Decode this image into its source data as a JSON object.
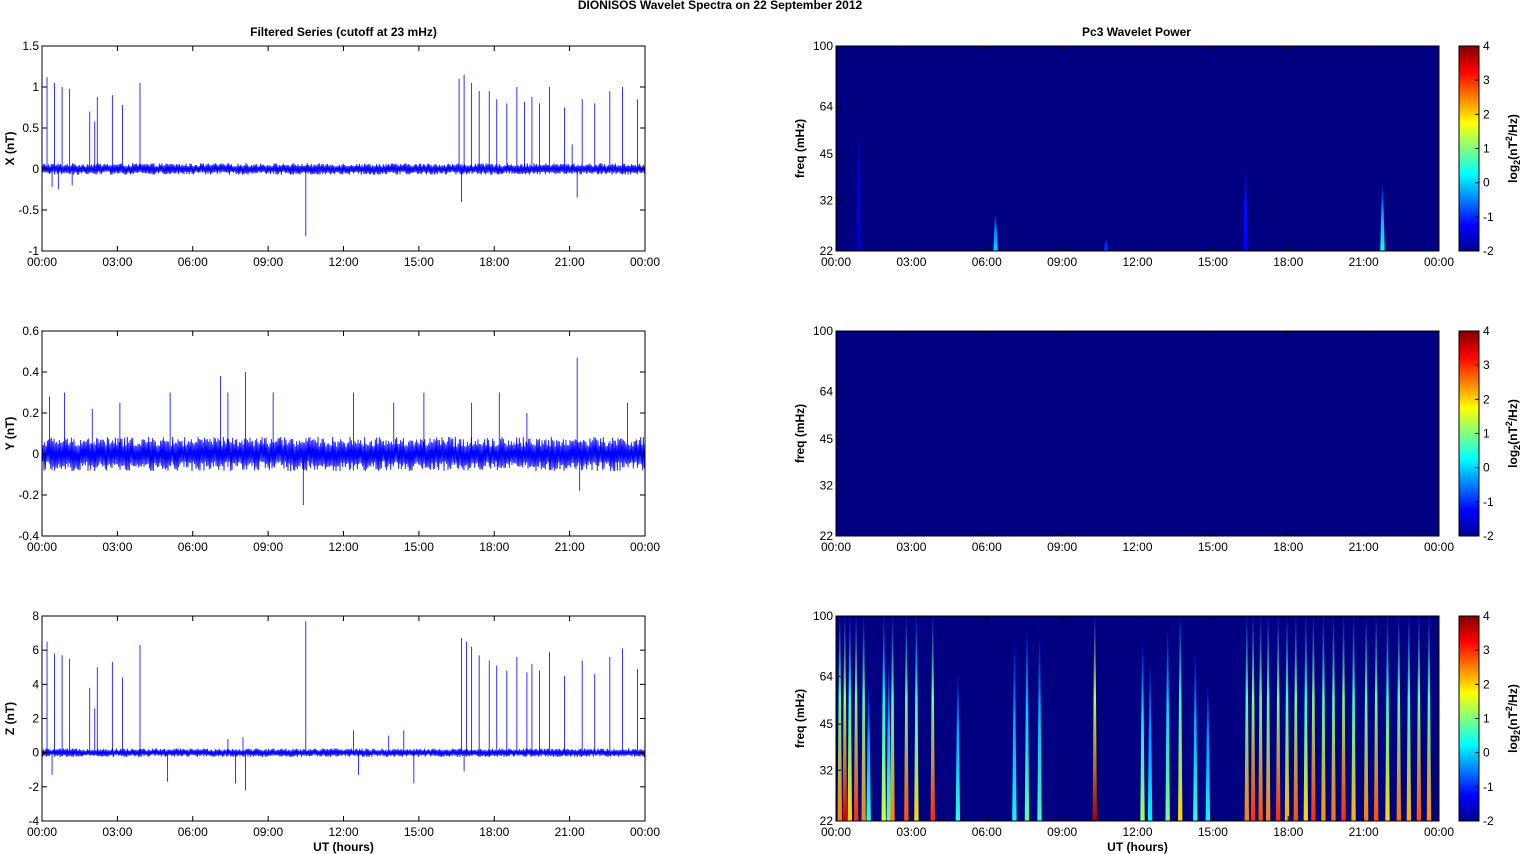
{
  "figure": {
    "suptitle": "DIONISOS Wavelet Spectra on 22 September 2012",
    "left_title": "Filtered Series (cutoff at 23 mHz)",
    "right_title": "Pc3 Wavelet Power"
  },
  "chart_data": [
    {
      "type": "line",
      "panel": "X",
      "ylabel": "X (nT)",
      "xlabel": "",
      "xlim": [
        0,
        24
      ],
      "ylim": [
        -1,
        1.5
      ],
      "yticks": [
        -1,
        -0.5,
        0,
        0.5,
        1,
        1.5
      ],
      "ytick_labels": [
        "-1",
        "-0.5",
        "0",
        "0.5",
        "1",
        "1.5"
      ],
      "xtick_labels": [
        "00:00",
        "03:00",
        "06:00",
        "09:00",
        "12:00",
        "15:00",
        "18:00",
        "21:00",
        "00:00"
      ],
      "series_color": "#0000ff",
      "noise_amplitude": 0.05,
      "spikes": [
        {
          "t": 0.2,
          "v": 1.12
        },
        {
          "t": 0.4,
          "v": -0.22
        },
        {
          "t": 0.5,
          "v": 1.05
        },
        {
          "t": 0.65,
          "v": -0.25
        },
        {
          "t": 0.8,
          "v": 1.0
        },
        {
          "t": 1.1,
          "v": 0.98
        },
        {
          "t": 1.2,
          "v": -0.2
        },
        {
          "t": 1.9,
          "v": 0.7
        },
        {
          "t": 2.1,
          "v": 0.58
        },
        {
          "t": 2.2,
          "v": 0.88
        },
        {
          "t": 2.8,
          "v": 0.9
        },
        {
          "t": 3.2,
          "v": 0.78
        },
        {
          "t": 3.9,
          "v": 1.05
        },
        {
          "t": 10.5,
          "v": -0.82
        },
        {
          "t": 16.6,
          "v": 1.1
        },
        {
          "t": 16.7,
          "v": -0.4
        },
        {
          "t": 16.8,
          "v": 1.15
        },
        {
          "t": 17.1,
          "v": 1.05
        },
        {
          "t": 17.4,
          "v": 0.95
        },
        {
          "t": 17.8,
          "v": 0.95
        },
        {
          "t": 18.1,
          "v": 0.85
        },
        {
          "t": 18.5,
          "v": 0.8
        },
        {
          "t": 18.9,
          "v": 1.0
        },
        {
          "t": 19.2,
          "v": 0.82
        },
        {
          "t": 19.5,
          "v": 0.88
        },
        {
          "t": 19.8,
          "v": 0.8
        },
        {
          "t": 20.2,
          "v": 1.0
        },
        {
          "t": 20.8,
          "v": 0.75
        },
        {
          "t": 21.1,
          "v": 0.3
        },
        {
          "t": 21.3,
          "v": -0.35
        },
        {
          "t": 21.5,
          "v": 0.85
        },
        {
          "t": 22.0,
          "v": 0.8
        },
        {
          "t": 22.6,
          "v": 0.95
        },
        {
          "t": 23.1,
          "v": 1.0
        },
        {
          "t": 23.7,
          "v": 0.85
        }
      ]
    },
    {
      "type": "line",
      "panel": "Y",
      "ylabel": "Y (nT)",
      "xlabel": "",
      "xlim": [
        0,
        24
      ],
      "ylim": [
        -0.4,
        0.6
      ],
      "yticks": [
        -0.4,
        -0.2,
        0,
        0.2,
        0.4,
        0.6
      ],
      "ytick_labels": [
        "-0.4",
        "-0.2",
        "0",
        "0.2",
        "0.4",
        "0.6"
      ],
      "xtick_labels": [
        "00:00",
        "03:00",
        "06:00",
        "09:00",
        "12:00",
        "15:00",
        "18:00",
        "21:00",
        "00:00"
      ],
      "series_color": "#0000ff",
      "noise_amplitude": 0.06,
      "spikes": [
        {
          "t": 0.3,
          "v": 0.28
        },
        {
          "t": 0.9,
          "v": 0.3
        },
        {
          "t": 2.0,
          "v": 0.22
        },
        {
          "t": 3.1,
          "v": 0.25
        },
        {
          "t": 5.1,
          "v": 0.3
        },
        {
          "t": 7.1,
          "v": 0.38
        },
        {
          "t": 7.4,
          "v": 0.3
        },
        {
          "t": 8.1,
          "v": 0.4
        },
        {
          "t": 9.2,
          "v": 0.3
        },
        {
          "t": 10.4,
          "v": -0.25
        },
        {
          "t": 12.4,
          "v": 0.3
        },
        {
          "t": 14.0,
          "v": 0.25
        },
        {
          "t": 15.2,
          "v": 0.3
        },
        {
          "t": 17.1,
          "v": 0.25
        },
        {
          "t": 18.2,
          "v": 0.3
        },
        {
          "t": 19.3,
          "v": 0.2
        },
        {
          "t": 21.3,
          "v": 0.47
        },
        {
          "t": 21.4,
          "v": -0.18
        },
        {
          "t": 23.3,
          "v": 0.25
        }
      ]
    },
    {
      "type": "line",
      "panel": "Z",
      "ylabel": "Z (nT)",
      "xlabel": "UT (hours)",
      "xlim": [
        0,
        24
      ],
      "ylim": [
        -4,
        8
      ],
      "yticks": [
        -4,
        -2,
        0,
        2,
        4,
        6,
        8
      ],
      "ytick_labels": [
        "-4",
        "-2",
        "0",
        "2",
        "4",
        "6",
        "8"
      ],
      "xtick_labels": [
        "00:00",
        "03:00",
        "06:00",
        "09:00",
        "12:00",
        "15:00",
        "18:00",
        "21:00",
        "00:00"
      ],
      "series_color": "#0000ff",
      "noise_amplitude": 0.18,
      "spikes": [
        {
          "t": 0.2,
          "v": 6.5
        },
        {
          "t": 0.4,
          "v": -1.3
        },
        {
          "t": 0.5,
          "v": 5.8
        },
        {
          "t": 0.8,
          "v": 5.7
        },
        {
          "t": 1.1,
          "v": 5.5
        },
        {
          "t": 1.9,
          "v": 3.8
        },
        {
          "t": 2.1,
          "v": 2.6
        },
        {
          "t": 2.2,
          "v": 5.0
        },
        {
          "t": 2.8,
          "v": 5.3
        },
        {
          "t": 3.2,
          "v": 4.4
        },
        {
          "t": 3.9,
          "v": 6.3
        },
        {
          "t": 5.0,
          "v": -1.7
        },
        {
          "t": 7.4,
          "v": 0.8
        },
        {
          "t": 7.7,
          "v": -1.8
        },
        {
          "t": 8.0,
          "v": 0.9
        },
        {
          "t": 8.1,
          "v": -2.2
        },
        {
          "t": 10.5,
          "v": 7.7
        },
        {
          "t": 12.4,
          "v": 1.3
        },
        {
          "t": 12.6,
          "v": -1.3
        },
        {
          "t": 13.8,
          "v": 1.0
        },
        {
          "t": 14.4,
          "v": 1.3
        },
        {
          "t": 14.8,
          "v": -1.8
        },
        {
          "t": 16.7,
          "v": 6.7
        },
        {
          "t": 16.8,
          "v": -1.1
        },
        {
          "t": 16.9,
          "v": 6.5
        },
        {
          "t": 17.1,
          "v": 6.2
        },
        {
          "t": 17.4,
          "v": 5.7
        },
        {
          "t": 17.8,
          "v": 5.4
        },
        {
          "t": 18.1,
          "v": 5.1
        },
        {
          "t": 18.5,
          "v": 4.8
        },
        {
          "t": 18.9,
          "v": 5.6
        },
        {
          "t": 19.3,
          "v": 4.7
        },
        {
          "t": 19.5,
          "v": 5.2
        },
        {
          "t": 19.8,
          "v": 4.8
        },
        {
          "t": 20.2,
          "v": 5.9
        },
        {
          "t": 20.8,
          "v": 4.5
        },
        {
          "t": 21.5,
          "v": 5.4
        },
        {
          "t": 22.0,
          "v": 4.6
        },
        {
          "t": 22.6,
          "v": 5.6
        },
        {
          "t": 23.1,
          "v": 6.1
        },
        {
          "t": 23.7,
          "v": 4.9
        }
      ]
    },
    {
      "type": "heatmap",
      "panel": "X-power",
      "ylabel": "freq (mHz)",
      "xlabel": "",
      "xlim": [
        0,
        24
      ],
      "ylim": [
        22,
        100
      ],
      "yscale": "log",
      "yticks": [
        22,
        32,
        45,
        64,
        100
      ],
      "ytick_labels": [
        "22",
        "32",
        "45",
        "64",
        "100"
      ],
      "xtick_labels": [
        "00:00",
        "03:00",
        "06:00",
        "09:00",
        "12:00",
        "15:00",
        "18:00",
        "21:00",
        "00:00"
      ],
      "background_value": -2,
      "colorbar": {
        "min": -2,
        "max": 4,
        "ticks": [
          -2,
          -1,
          0,
          1,
          2,
          3,
          4
        ],
        "tick_labels": [
          "-2",
          "-1",
          "0",
          "1",
          "2",
          "3",
          "4"
        ],
        "label": "log2(nT²/Hz)"
      },
      "events": [
        {
          "t": 0.9,
          "top_freq": 50,
          "peak": -1.6
        },
        {
          "t": 6.35,
          "top_freq": 29,
          "peak": 0.0
        },
        {
          "t": 10.75,
          "top_freq": 24,
          "peak": -1.0
        },
        {
          "t": 16.3,
          "top_freq": 40,
          "peak": -1.3
        },
        {
          "t": 21.75,
          "top_freq": 36,
          "peak": 0.3
        }
      ]
    },
    {
      "type": "heatmap",
      "panel": "Y-power",
      "ylabel": "freq (mHz)",
      "xlabel": "",
      "xlim": [
        0,
        24
      ],
      "ylim": [
        22,
        100
      ],
      "yscale": "log",
      "yticks": [
        22,
        32,
        45,
        64,
        100
      ],
      "ytick_labels": [
        "22",
        "32",
        "45",
        "64",
        "100"
      ],
      "xtick_labels": [
        "00:00",
        "03:00",
        "06:00",
        "09:00",
        "12:00",
        "15:00",
        "18:00",
        "21:00",
        "00:00"
      ],
      "background_value": -2,
      "colorbar": {
        "min": -2,
        "max": 4,
        "ticks": [
          -2,
          -1,
          0,
          1,
          2,
          3,
          4
        ],
        "tick_labels": [
          "-2",
          "-1",
          "0",
          "1",
          "2",
          "3",
          "4"
        ],
        "label": "log2(nT²/Hz)"
      },
      "events": []
    },
    {
      "type": "heatmap",
      "panel": "Z-power",
      "ylabel": "freq (mHz)",
      "xlabel": "UT (hours)",
      "xlim": [
        0,
        24
      ],
      "ylim": [
        22,
        100
      ],
      "yscale": "log",
      "yticks": [
        22,
        32,
        45,
        64,
        100
      ],
      "ytick_labels": [
        "22",
        "32",
        "45",
        "64",
        "100"
      ],
      "xtick_labels": [
        "00:00",
        "03:00",
        "06:00",
        "09:00",
        "12:00",
        "15:00",
        "18:00",
        "21:00",
        "00:00"
      ],
      "background_value": -2,
      "colorbar": {
        "min": -2,
        "max": 4,
        "ticks": [
          -2,
          -1,
          0,
          1,
          2,
          3,
          4
        ],
        "tick_labels": [
          "-2",
          "-1",
          "0",
          "1",
          "2",
          "3",
          "4"
        ],
        "label": "log2(nT²/Hz)"
      },
      "events": [
        {
          "t": 0.15,
          "top_freq": 100,
          "peak": 2.5
        },
        {
          "t": 0.35,
          "top_freq": 100,
          "peak": 3.5
        },
        {
          "t": 0.55,
          "top_freq": 100,
          "peak": 2.0
        },
        {
          "t": 0.8,
          "top_freq": 100,
          "peak": 3.0
        },
        {
          "t": 1.1,
          "top_freq": 100,
          "peak": 2.5
        },
        {
          "t": 1.3,
          "top_freq": 60,
          "peak": 0.5
        },
        {
          "t": 1.9,
          "top_freq": 100,
          "peak": 1.5
        },
        {
          "t": 2.1,
          "top_freq": 70,
          "peak": 0.8
        },
        {
          "t": 2.25,
          "top_freq": 100,
          "peak": 2.5
        },
        {
          "t": 2.8,
          "top_freq": 100,
          "peak": 2.8
        },
        {
          "t": 3.2,
          "top_freq": 100,
          "peak": 2.0
        },
        {
          "t": 3.85,
          "top_freq": 100,
          "peak": 3.0
        },
        {
          "t": 4.85,
          "top_freq": 65,
          "peak": 0.5
        },
        {
          "t": 7.1,
          "top_freq": 80,
          "peak": 0.3
        },
        {
          "t": 7.6,
          "top_freq": 90,
          "peak": 0.8
        },
        {
          "t": 8.1,
          "top_freq": 85,
          "peak": 0.6
        },
        {
          "t": 10.3,
          "top_freq": 100,
          "peak": 3.8
        },
        {
          "t": 12.2,
          "top_freq": 80,
          "peak": 1.2
        },
        {
          "t": 12.5,
          "top_freq": 70,
          "peak": 0.2
        },
        {
          "t": 13.2,
          "top_freq": 90,
          "peak": 1.0
        },
        {
          "t": 13.7,
          "top_freq": 100,
          "peak": 2.0
        },
        {
          "t": 14.3,
          "top_freq": 75,
          "peak": 0.5
        },
        {
          "t": 14.8,
          "top_freq": 60,
          "peak": 0.3
        },
        {
          "t": 16.35,
          "top_freq": 100,
          "peak": 2.5
        },
        {
          "t": 16.6,
          "top_freq": 100,
          "peak": 3.0
        },
        {
          "t": 16.9,
          "top_freq": 100,
          "peak": 2.8
        },
        {
          "t": 17.2,
          "top_freq": 100,
          "peak": 2.5
        },
        {
          "t": 17.6,
          "top_freq": 100,
          "peak": 3.0
        },
        {
          "t": 17.95,
          "top_freq": 100,
          "peak": 2.2
        },
        {
          "t": 18.3,
          "top_freq": 100,
          "peak": 2.8
        },
        {
          "t": 18.7,
          "top_freq": 100,
          "peak": 2.0
        },
        {
          "t": 19.0,
          "top_freq": 100,
          "peak": 3.0
        },
        {
          "t": 19.4,
          "top_freq": 100,
          "peak": 2.4
        },
        {
          "t": 19.8,
          "top_freq": 100,
          "peak": 2.6
        },
        {
          "t": 20.2,
          "top_freq": 100,
          "peak": 3.0
        },
        {
          "t": 20.6,
          "top_freq": 100,
          "peak": 2.2
        },
        {
          "t": 21.1,
          "top_freq": 100,
          "peak": 2.5
        },
        {
          "t": 21.5,
          "top_freq": 100,
          "peak": 2.8
        },
        {
          "t": 21.95,
          "top_freq": 100,
          "peak": 2.0
        },
        {
          "t": 22.4,
          "top_freq": 100,
          "peak": 2.6
        },
        {
          "t": 22.8,
          "top_freq": 100,
          "peak": 2.2
        },
        {
          "t": 23.2,
          "top_freq": 100,
          "peak": 2.8
        },
        {
          "t": 23.6,
          "top_freq": 100,
          "peak": 2.4
        }
      ]
    }
  ]
}
